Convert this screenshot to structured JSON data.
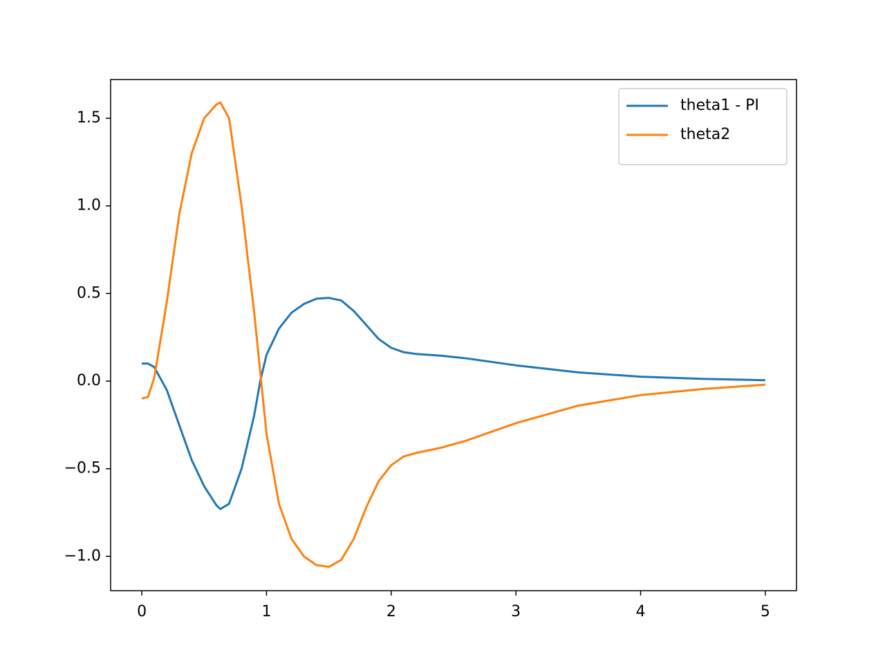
{
  "chart_data": {
    "type": "line",
    "x": [
      0,
      0.05,
      0.1,
      0.2,
      0.3,
      0.4,
      0.5,
      0.6,
      0.63,
      0.7,
      0.8,
      0.9,
      0.95,
      1.0,
      1.1,
      1.2,
      1.3,
      1.4,
      1.5,
      1.6,
      1.7,
      1.8,
      1.9,
      2.0,
      2.1,
      2.2,
      2.4,
      2.6,
      3.0,
      3.5,
      4.0,
      4.5,
      5.0
    ],
    "series": [
      {
        "name": "theta1 - PI",
        "color": "#1f77b4",
        "values": [
          0.1,
          0.1,
          0.08,
          -0.05,
          -0.25,
          -0.45,
          -0.6,
          -0.71,
          -0.73,
          -0.7,
          -0.5,
          -0.2,
          0,
          0.15,
          0.3,
          0.39,
          0.44,
          0.47,
          0.475,
          0.46,
          0.4,
          0.32,
          0.24,
          0.19,
          0.165,
          0.155,
          0.145,
          0.13,
          0.09,
          0.05,
          0.025,
          0.013,
          0.005
        ]
      },
      {
        "name": "theta2",
        "color": "#ff7f0e",
        "values": [
          -0.1,
          -0.09,
          0.02,
          0.45,
          0.95,
          1.3,
          1.5,
          1.58,
          1.59,
          1.5,
          1.0,
          0.4,
          0.05,
          -0.3,
          -0.7,
          -0.9,
          -1.0,
          -1.05,
          -1.06,
          -1.02,
          -0.9,
          -0.72,
          -0.57,
          -0.48,
          -0.43,
          -0.41,
          -0.38,
          -0.34,
          -0.24,
          -0.14,
          -0.08,
          -0.045,
          -0.02
        ]
      }
    ],
    "xlim": [
      -0.25,
      5.25
    ],
    "ylim": [
      -1.196,
      1.721
    ],
    "xticks": [
      0,
      1,
      2,
      3,
      4,
      5
    ],
    "yticks": [
      {
        "value": -1.0,
        "label": "−1.0"
      },
      {
        "value": -0.5,
        "label": "−0.5"
      },
      {
        "value": 0.0,
        "label": "0.0"
      },
      {
        "value": 0.5,
        "label": "0.5"
      },
      {
        "value": 1.0,
        "label": "1.0"
      },
      {
        "value": 1.5,
        "label": "1.5"
      }
    ],
    "legend": "upper right"
  }
}
